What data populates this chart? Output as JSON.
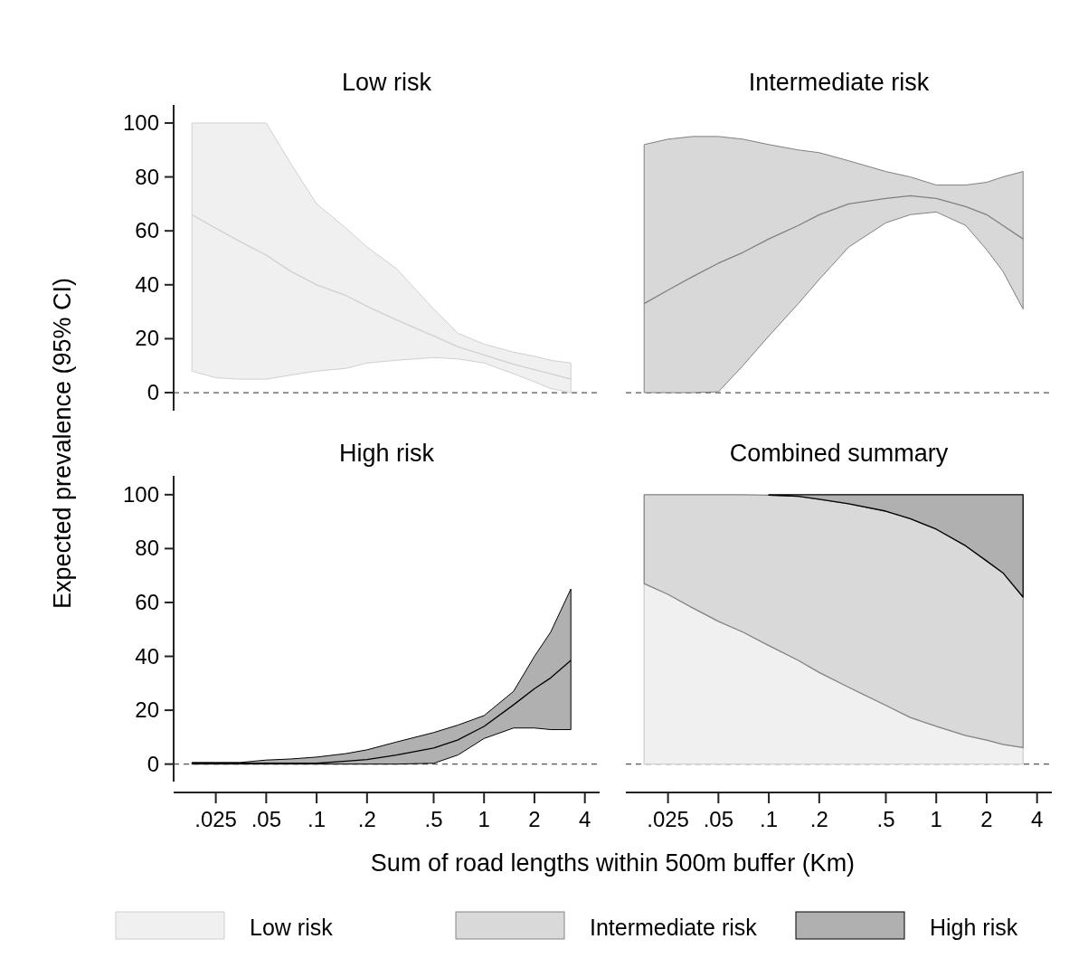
{
  "chart_data": [
    {
      "type": "line",
      "title": "Low risk",
      "ylabel": "Expected prevalence (95% CI)",
      "x": [
        0.018,
        0.025,
        0.035,
        0.05,
        0.07,
        0.1,
        0.15,
        0.2,
        0.3,
        0.5,
        0.7,
        1,
        1.5,
        2,
        2.5,
        3.3
      ],
      "log": "x",
      "xlim": [
        0.014,
        4.9
      ],
      "ylim": [
        -6.7,
        106.7
      ],
      "yticks": [
        0,
        20,
        40,
        60,
        80,
        100
      ],
      "tick_labels": "y",
      "ref_lines": [
        {
          "axis": "y",
          "value": 0,
          "line_style": "dashed",
          "color": "#555555"
        }
      ],
      "series": [
        {
          "color": "#d0d0d0",
          "values": [
            66,
            61,
            56,
            51,
            45,
            40,
            36,
            32,
            27,
            21,
            17,
            14,
            10.5,
            8.5,
            7,
            5
          ],
          "lower": [
            8,
            5.5,
            5,
            5,
            6.5,
            8,
            9,
            11,
            12,
            13,
            12.5,
            11,
            7,
            4,
            1.5,
            0
          ],
          "upper": [
            100,
            100,
            100,
            100,
            85,
            70,
            61,
            54,
            46,
            31,
            22,
            18,
            15,
            13.5,
            12,
            11
          ]
        }
      ]
    },
    {
      "type": "line",
      "title": "Intermediate risk",
      "x": [
        0.018,
        0.025,
        0.035,
        0.05,
        0.07,
        0.1,
        0.15,
        0.2,
        0.3,
        0.5,
        0.7,
        1,
        1.5,
        2,
        2.5,
        3.3
      ],
      "log": "x",
      "xlim": [
        0.014,
        4.9
      ],
      "ylim": [
        0,
        100
      ],
      "yticks": [
        0,
        20,
        40,
        60,
        80,
        100
      ],
      "tick_labels": false,
      "ref_lines": [
        {
          "axis": "y",
          "value": 0,
          "line_style": "dashed",
          "color": "#555555"
        }
      ],
      "series": [
        {
          "color": "#808080",
          "values": [
            33,
            38,
            43,
            48,
            52,
            57,
            62,
            66,
            70,
            72,
            73,
            72,
            69,
            66,
            62,
            57
          ],
          "lower": [
            0,
            0,
            0,
            0.3,
            10,
            21,
            33,
            42,
            54,
            63,
            66,
            67,
            62,
            53,
            45,
            31
          ],
          "upper": [
            92,
            94,
            95,
            95,
            94,
            92,
            90,
            89,
            86,
            82,
            80,
            77,
            77,
            78,
            80,
            82
          ]
        }
      ]
    },
    {
      "type": "line",
      "title": "High risk",
      "xlabel": "Sum of road lengths within 500m buffer (Km)",
      "x": [
        0.018,
        0.025,
        0.035,
        0.05,
        0.07,
        0.1,
        0.15,
        0.2,
        0.3,
        0.5,
        0.7,
        1,
        1.5,
        2,
        2.5,
        3.3
      ],
      "log": "x",
      "xlim": [
        0.014,
        4.9
      ],
      "ylim": [
        -6.5,
        107
      ],
      "yticks": [
        0,
        20,
        40,
        60,
        80,
        100
      ],
      "xticks": [
        {
          "value": 0.025,
          "label": ".025"
        },
        {
          "value": 0.05,
          "label": ".05"
        },
        {
          "value": 0.1,
          "label": ".1"
        },
        {
          "value": 0.2,
          "label": ".2"
        },
        {
          "value": 0.5,
          "label": ".5"
        },
        1,
        2,
        4
      ],
      "ref_lines": [
        {
          "axis": "y",
          "value": 0,
          "line_style": "dashed",
          "color": "#555555"
        }
      ],
      "series": [
        {
          "color": "#000000",
          "values": [
            0.3,
            0.3,
            0.3,
            0.3,
            0.3,
            0.3,
            1.1,
            1.7,
            3.4,
            6,
            9,
            14,
            22,
            28,
            32,
            38.5
          ],
          "lower": [
            0,
            0,
            0,
            0,
            0,
            0,
            0,
            0,
            0,
            0.3,
            3.4,
            9.5,
            13.4,
            13.4,
            12.8,
            12.8
          ],
          "upper": [
            0.6,
            0.6,
            0.6,
            1.5,
            1.9,
            2.6,
            3.9,
            5.3,
            8.2,
            11.7,
            14.5,
            18,
            27,
            40,
            49,
            65
          ]
        }
      ]
    },
    {
      "type": "area",
      "title": "Combined summary",
      "stacked": true,
      "legend": "bottom",
      "x": [
        0.018,
        0.025,
        0.035,
        0.05,
        0.07,
        0.1,
        0.15,
        0.2,
        0.3,
        0.5,
        0.7,
        1,
        1.5,
        2,
        2.5,
        3.3
      ],
      "log": "x",
      "xlim": [
        0.014,
        4.9
      ],
      "xticks": [
        {
          "value": 0.025,
          "label": ".025"
        },
        {
          "value": 0.05,
          "label": ".05"
        },
        {
          "value": 0.1,
          "label": ".1"
        },
        {
          "value": 0.2,
          "label": ".2"
        },
        {
          "value": 0.5,
          "label": ".5"
        },
        1,
        2,
        4
      ],
      "ylim": [
        0,
        100
      ],
      "yticks": [
        0,
        20,
        40,
        60,
        80,
        100
      ],
      "tick_labels": "x",
      "ref_lines": [
        {
          "axis": "y",
          "value": 0,
          "line_style": "dashed",
          "color": "#555555"
        }
      ],
      "series": [
        {
          "name": "Low risk",
          "color": "#f0f0f0",
          "values": [
            67,
            63,
            58,
            53,
            49,
            44,
            38.5,
            34,
            28.5,
            21.8,
            17.3,
            14,
            10.6,
            8.9,
            7.3,
            6.1
          ]
        },
        {
          "name": "Intermediate risk",
          "color": "#d9d9d9",
          "values": [
            33,
            37,
            42,
            47,
            51,
            55.8,
            60.9,
            64.3,
            68.1,
            72.1,
            73.8,
            73.2,
            70.4,
            66.5,
            63.7,
            55.9
          ]
        },
        {
          "name": "High risk",
          "color": "#b0b0b0",
          "values": [
            null,
            null,
            null,
            null,
            null,
            0.2,
            0.6,
            1.7,
            3.4,
            6.1,
            8.9,
            12.8,
            19,
            24.6,
            29,
            38
          ]
        }
      ]
    }
  ]
}
